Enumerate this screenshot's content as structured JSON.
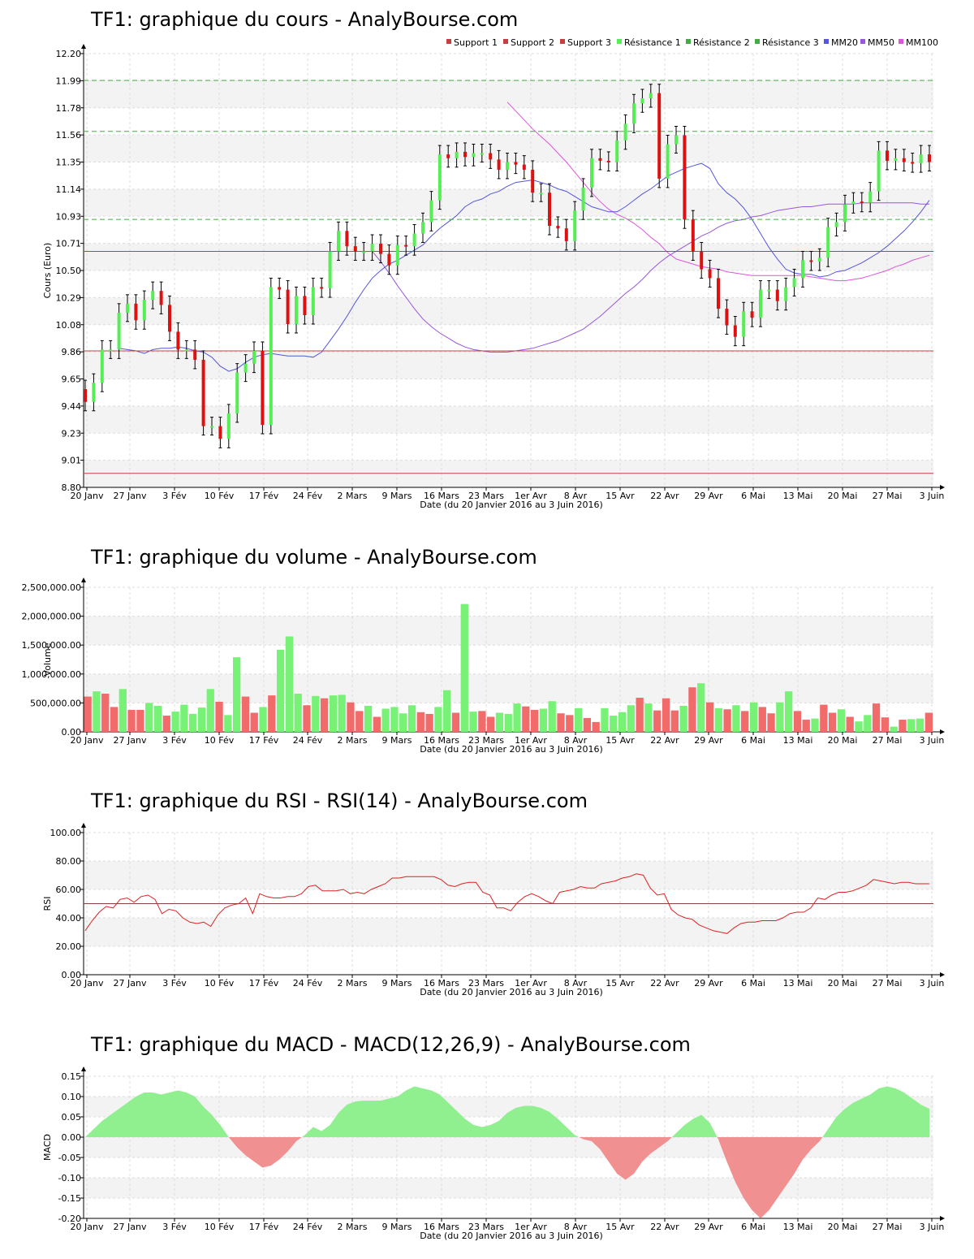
{
  "xlabel": "Date (du 20 Janvier 2016 au 3 Juin 2016)",
  "dates": [
    "20 Janv",
    "27 Janv",
    "3 Fév",
    "10 Fév",
    "17 Fév",
    "24 Fév",
    "2 Mars",
    "9 Mars",
    "16 Mars",
    "23 Mars",
    "1er Avr",
    "8 Avr",
    "15 Avr",
    "22 Avr",
    "29 Avr",
    "6 Mai",
    "13 Mai",
    "20 Mai",
    "27 Mai",
    "3 Juin"
  ],
  "colors": {
    "up": "#55ee55",
    "down": "#dd1111",
    "volume_up": "#77f277",
    "volume_down": "#f26b6b",
    "support": "#c44040",
    "resistance": "#44aa44",
    "mm20": "#5555dd",
    "mm50": "#9955dd",
    "mm100": "#dd55dd",
    "rsi": "#dd2222",
    "macd_pos": "#90f090",
    "macd_neg": "#f09090"
  },
  "chart_data": [
    {
      "id": "price",
      "type": "candlestick",
      "title": "TF1: graphique du cours - AnalyBourse.com",
      "xlabel": "Date (du 20 Janvier 2016 au 3 Juin 2016)",
      "ylabel": "Cours (Euro)",
      "ylim": [
        8.8,
        12.2
      ],
      "yticks": [
        "8.80",
        "9.01",
        "9.23",
        "9.44",
        "9.65",
        "9.86",
        "10.08",
        "10.29",
        "10.50",
        "10.71",
        "10.93",
        "11.14",
        "11.35",
        "11.56",
        "11.78",
        "11.99",
        "12.20"
      ],
      "grid": true,
      "legend_position": "top-right",
      "legend": [
        "Support 1",
        "Support 2",
        "Support 3",
        "Résistance 1",
        "Résistance 2",
        "Résistance 3",
        "MM20",
        "MM50",
        "MM100"
      ],
      "support": [
        10.65,
        9.87,
        8.91
      ],
      "resistance": [
        10.9,
        11.59,
        11.99
      ],
      "close": [
        9.47,
        9.62,
        9.88,
        9.88,
        10.17,
        10.24,
        10.11,
        10.27,
        10.34,
        10.23,
        10.02,
        9.88,
        9.88,
        9.8,
        9.28,
        9.28,
        9.18,
        9.38,
        9.7,
        9.77,
        9.87,
        9.29,
        10.37,
        10.35,
        10.08,
        10.3,
        10.15,
        10.37,
        10.36,
        10.65,
        10.81,
        10.69,
        10.65,
        10.65,
        10.71,
        10.63,
        10.54,
        10.7,
        10.69,
        10.79,
        10.88,
        11.05,
        11.41,
        11.38,
        11.43,
        11.39,
        11.42,
        11.42,
        11.37,
        11.29,
        11.35,
        11.33,
        11.29,
        11.11,
        11.11,
        10.85,
        10.83,
        10.73,
        10.97,
        11.15,
        11.38,
        11.36,
        11.35,
        11.52,
        11.65,
        11.81,
        11.85,
        11.89,
        11.22,
        11.49,
        11.56,
        10.9,
        10.65,
        10.51,
        10.44,
        10.2,
        10.07,
        9.98,
        10.18,
        10.13,
        10.35,
        10.35,
        10.26,
        10.37,
        10.44,
        10.58,
        10.57,
        10.6,
        10.84,
        10.88,
        11.02,
        11.04,
        11.03,
        11.12,
        11.44,
        11.36,
        11.38,
        11.35,
        11.34,
        11.41,
        11.35
      ],
      "ma20": [
        9.89,
        9.88,
        9.87,
        9.85,
        9.88,
        9.89,
        9.89,
        9.9,
        9.89,
        9.87,
        9.86,
        9.82,
        9.75,
        9.71,
        9.73,
        9.78,
        9.82,
        9.84,
        9.85,
        9.84,
        9.83,
        9.83,
        9.83,
        9.82,
        9.86,
        9.95,
        10.04,
        10.14,
        10.25,
        10.35,
        10.44,
        10.5,
        10.55,
        10.58,
        10.62,
        10.66,
        10.7,
        10.77,
        10.83,
        10.88,
        10.93,
        11.0,
        11.04,
        11.06,
        11.1,
        11.12,
        11.16,
        11.19,
        11.2,
        11.21,
        11.19,
        11.17,
        11.14,
        11.12,
        11.08,
        11.04,
        11.0,
        10.98,
        10.96,
        10.96,
        11.0,
        11.05,
        11.1,
        11.14,
        11.19,
        11.24,
        11.27,
        11.3,
        11.32,
        11.34,
        11.3,
        11.18,
        11.11,
        11.06,
        10.99,
        10.9,
        10.79,
        10.68,
        10.59,
        10.51,
        10.48,
        10.47,
        10.47,
        10.45,
        10.46,
        10.49,
        10.5,
        10.53,
        10.56,
        10.6,
        10.64,
        10.69,
        10.75,
        10.81,
        10.88,
        10.96,
        11.05
      ],
      "ma50": [
        10.65,
        10.57,
        10.48,
        10.38,
        10.29,
        10.2,
        10.12,
        10.06,
        10.01,
        9.97,
        9.93,
        9.9,
        9.88,
        9.87,
        9.86,
        9.86,
        9.86,
        9.87,
        9.88,
        9.89,
        9.91,
        9.93,
        9.95,
        9.98,
        10.01,
        10.04,
        10.09,
        10.14,
        10.2,
        10.26,
        10.32,
        10.37,
        10.43,
        10.5,
        10.56,
        10.61,
        10.65,
        10.69,
        10.73,
        10.77,
        10.8,
        10.84,
        10.87,
        10.89,
        10.9,
        10.92,
        10.93,
        10.95,
        10.97,
        10.98,
        10.99,
        11.0,
        11.0,
        11.01,
        11.02,
        11.02,
        11.02,
        11.02,
        11.03,
        11.03,
        11.03,
        11.03,
        11.03,
        11.03,
        11.03,
        11.02,
        11.02
      ],
      "ma100": [
        11.82,
        11.75,
        11.68,
        11.61,
        11.55,
        11.49,
        11.42,
        11.35,
        11.27,
        11.19,
        11.11,
        11.04,
        10.98,
        10.94,
        10.91,
        10.87,
        10.82,
        10.76,
        10.71,
        10.64,
        10.59,
        10.57,
        10.55,
        10.53,
        10.52,
        10.51,
        10.49,
        10.48,
        10.47,
        10.46,
        10.46,
        10.46,
        10.46,
        10.46,
        10.46,
        10.46,
        10.45,
        10.44,
        10.43,
        10.42,
        10.42,
        10.43,
        10.44,
        10.46,
        10.48,
        10.5,
        10.53,
        10.55,
        10.58,
        10.6,
        10.62
      ]
    },
    {
      "id": "volume",
      "type": "bar",
      "title": "TF1: graphique du volume - AnalyBourse.com",
      "xlabel": "Date (du 20 Janvier 2016 au 3 Juin 2016)",
      "ylabel": "Volume",
      "ylim": [
        0,
        2500000
      ],
      "yticks": [
        "0.00",
        "500,000.00",
        "1,000,000.00",
        "1,500,000.00",
        "2,000,000.00",
        "2,500,000.00"
      ],
      "values": [
        610000,
        700000,
        660000,
        430000,
        740000,
        380000,
        380000,
        500000,
        450000,
        280000,
        350000,
        470000,
        310000,
        420000,
        740000,
        520000,
        290000,
        1290000,
        610000,
        330000,
        430000,
        630000,
        1420000,
        1650000,
        660000,
        460000,
        620000,
        580000,
        630000,
        640000,
        510000,
        360000,
        450000,
        260000,
        400000,
        430000,
        320000,
        460000,
        340000,
        310000,
        430000,
        720000,
        330000,
        2210000,
        350000,
        360000,
        260000,
        330000,
        310000,
        490000,
        440000,
        380000,
        400000,
        530000,
        320000,
        290000,
        410000,
        240000,
        170000,
        410000,
        280000,
        340000,
        460000,
        590000,
        490000,
        370000,
        580000,
        370000,
        450000,
        770000,
        840000,
        510000,
        410000,
        390000,
        460000,
        360000,
        510000,
        430000,
        320000,
        510000,
        700000,
        360000,
        210000,
        230000,
        470000,
        330000,
        390000,
        260000,
        180000,
        290000,
        490000,
        250000,
        90000,
        210000,
        220000,
        230000,
        330000
      ]
    },
    {
      "id": "rsi",
      "type": "line",
      "title": "TF1: graphique du RSI - RSI(14) - AnalyBourse.com",
      "xlabel": "Date (du 20 Janvier 2016 au 3 Juin 2016)",
      "ylabel": "RSI",
      "ylim": [
        0,
        100
      ],
      "yticks": [
        "0.00",
        "20.00",
        "40.00",
        "60.00",
        "80.00",
        "100.00"
      ],
      "reference": 50,
      "values": [
        31,
        38,
        44,
        48,
        47,
        53,
        54,
        51,
        55,
        56,
        53,
        43,
        46,
        45,
        40,
        37,
        36,
        37,
        34,
        42,
        47,
        49,
        50,
        54,
        43,
        57,
        55,
        54,
        54,
        55,
        55,
        57,
        62,
        63,
        59,
        59,
        59,
        60,
        57,
        58,
        57,
        60,
        62,
        64,
        68,
        68,
        69,
        69,
        69,
        69,
        69,
        67,
        63,
        62,
        64,
        65,
        65,
        58,
        56,
        47,
        47,
        45,
        51,
        55,
        57,
        55,
        52,
        50,
        58,
        59,
        60,
        62,
        61,
        61,
        64,
        65,
        66,
        68,
        69,
        71,
        70,
        61,
        56,
        57,
        46,
        42,
        40,
        39,
        35,
        33,
        31,
        30,
        29,
        33,
        36,
        37,
        37,
        38,
        38,
        38,
        40,
        43,
        44,
        44,
        47,
        54,
        53,
        56,
        58,
        58,
        59,
        61,
        63,
        67,
        66,
        65,
        64,
        65,
        65,
        64,
        64,
        64
      ]
    },
    {
      "id": "macd",
      "type": "area",
      "title": "TF1: graphique du MACD - MACD(12,26,9) - AnalyBourse.com",
      "xlabel": "Date (du 20 Janvier 2016 au 3 Juin 2016)",
      "ylabel": "MACD",
      "ylim": [
        -0.2,
        0.15
      ],
      "yticks": [
        "-0.20",
        "-0.15",
        "-0.10",
        "-0.05",
        "0.00",
        "0.05",
        "0.10",
        "0.15"
      ],
      "values": [
        0.0,
        0.02,
        0.04,
        0.055,
        0.07,
        0.085,
        0.1,
        0.11,
        0.11,
        0.105,
        0.11,
        0.115,
        0.11,
        0.1,
        0.075,
        0.055,
        0.03,
        0.0,
        -0.025,
        -0.045,
        -0.06,
        -0.075,
        -0.07,
        -0.055,
        -0.035,
        -0.01,
        0.005,
        0.025,
        0.015,
        0.03,
        0.06,
        0.08,
        0.088,
        0.09,
        0.09,
        0.09,
        0.095,
        0.1,
        0.115,
        0.125,
        0.12,
        0.115,
        0.105,
        0.085,
        0.065,
        0.045,
        0.03,
        0.025,
        0.03,
        0.04,
        0.06,
        0.072,
        0.077,
        0.077,
        0.072,
        0.062,
        0.045,
        0.025,
        0.005,
        -0.005,
        -0.01,
        -0.03,
        -0.06,
        -0.09,
        -0.105,
        -0.09,
        -0.06,
        -0.04,
        -0.025,
        -0.01,
        0.01,
        0.03,
        0.045,
        0.055,
        0.035,
        -0.005,
        -0.06,
        -0.11,
        -0.15,
        -0.18,
        -0.2,
        -0.18,
        -0.15,
        -0.12,
        -0.09,
        -0.055,
        -0.03,
        -0.01,
        0.02,
        0.05,
        0.07,
        0.085,
        0.095,
        0.105,
        0.12,
        0.125,
        0.12,
        0.11,
        0.095,
        0.08,
        0.07
      ]
    }
  ]
}
